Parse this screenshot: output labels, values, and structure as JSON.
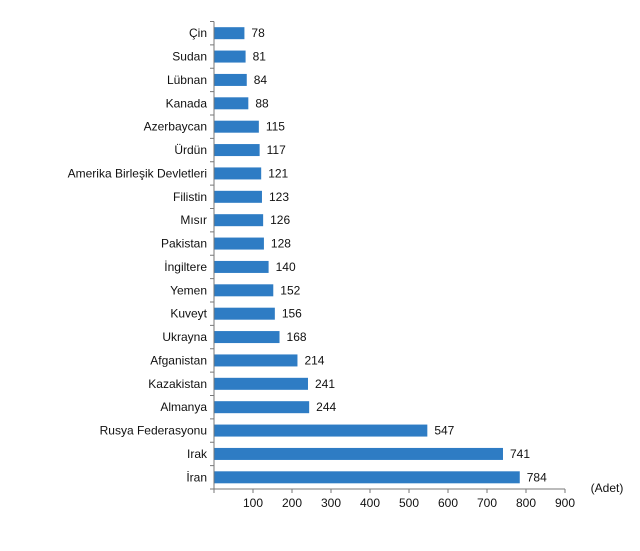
{
  "chart_data": {
    "type": "bar",
    "orientation": "horizontal",
    "categories": [
      "Çin",
      "Sudan",
      "Lübnan",
      "Kanada",
      "Azerbaycan",
      "Ürdün",
      "Amerika Birleşik Devletleri",
      "Filistin",
      "Mısır",
      "Pakistan",
      "İngiltere",
      "Yemen",
      "Kuveyt",
      "Ukrayna",
      "Afganistan",
      "Kazakistan",
      "Almanya",
      "Rusya Federasyonu",
      "Irak",
      "İran"
    ],
    "values": [
      78,
      81,
      84,
      88,
      115,
      117,
      121,
      123,
      126,
      128,
      140,
      152,
      156,
      168,
      214,
      241,
      244,
      547,
      741,
      784
    ],
    "xlim": [
      0,
      900
    ],
    "xticks": [
      100,
      200,
      300,
      400,
      500,
      600,
      700,
      800,
      900
    ],
    "unit_label": "(Adet)",
    "grid": false,
    "legend": "none",
    "bar_color": "#2e7cc4"
  }
}
